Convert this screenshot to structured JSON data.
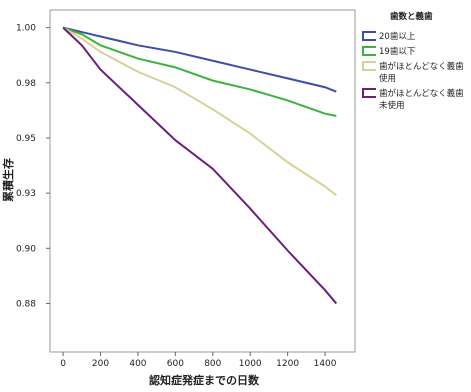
{
  "chart_data": {
    "type": "line",
    "x_label": "認知症発症までの日数",
    "y_label": "累積生存",
    "legend_title": "歯数と義歯",
    "x": [
      0,
      100,
      200,
      400,
      600,
      800,
      1000,
      1200,
      1400,
      1460
    ],
    "series": [
      {
        "name": "20歯以上",
        "color": "#3c4fa8",
        "values": [
          1.0,
          0.998,
          0.996,
          0.992,
          0.989,
          0.985,
          0.981,
          0.977,
          0.973,
          0.971
        ]
      },
      {
        "name": "19歯以下",
        "color": "#3db33d",
        "values": [
          1.0,
          0.997,
          0.992,
          0.986,
          0.982,
          0.976,
          0.972,
          0.967,
          0.961,
          0.96
        ]
      },
      {
        "name": "歯がほとんどなく義歯使用",
        "color": "#d9d096",
        "values": [
          1.0,
          0.995,
          0.989,
          0.98,
          0.973,
          0.963,
          0.952,
          0.939,
          0.928,
          0.924
        ]
      },
      {
        "name": "歯がほとんどなく義歯未使用",
        "color": "#6b1e7e",
        "values": [
          1.0,
          0.992,
          0.981,
          0.965,
          0.949,
          0.936,
          0.918,
          0.899,
          0.881,
          0.875
        ]
      }
    ],
    "xlim": [
      -70,
      1560
    ],
    "ylim": [
      0.853,
      1.008
    ],
    "xticks": [
      0,
      200,
      400,
      600,
      800,
      1000,
      1200,
      1400
    ],
    "yticks": [
      {
        "value": 1.0,
        "label": "1.00"
      },
      {
        "value": 0.975,
        "label": "0.98"
      },
      {
        "value": 0.95,
        "label": "0.95"
      },
      {
        "value": 0.925,
        "label": "0.93"
      },
      {
        "value": 0.9,
        "label": "0.90"
      },
      {
        "value": 0.875,
        "label": "0.88"
      }
    ]
  }
}
